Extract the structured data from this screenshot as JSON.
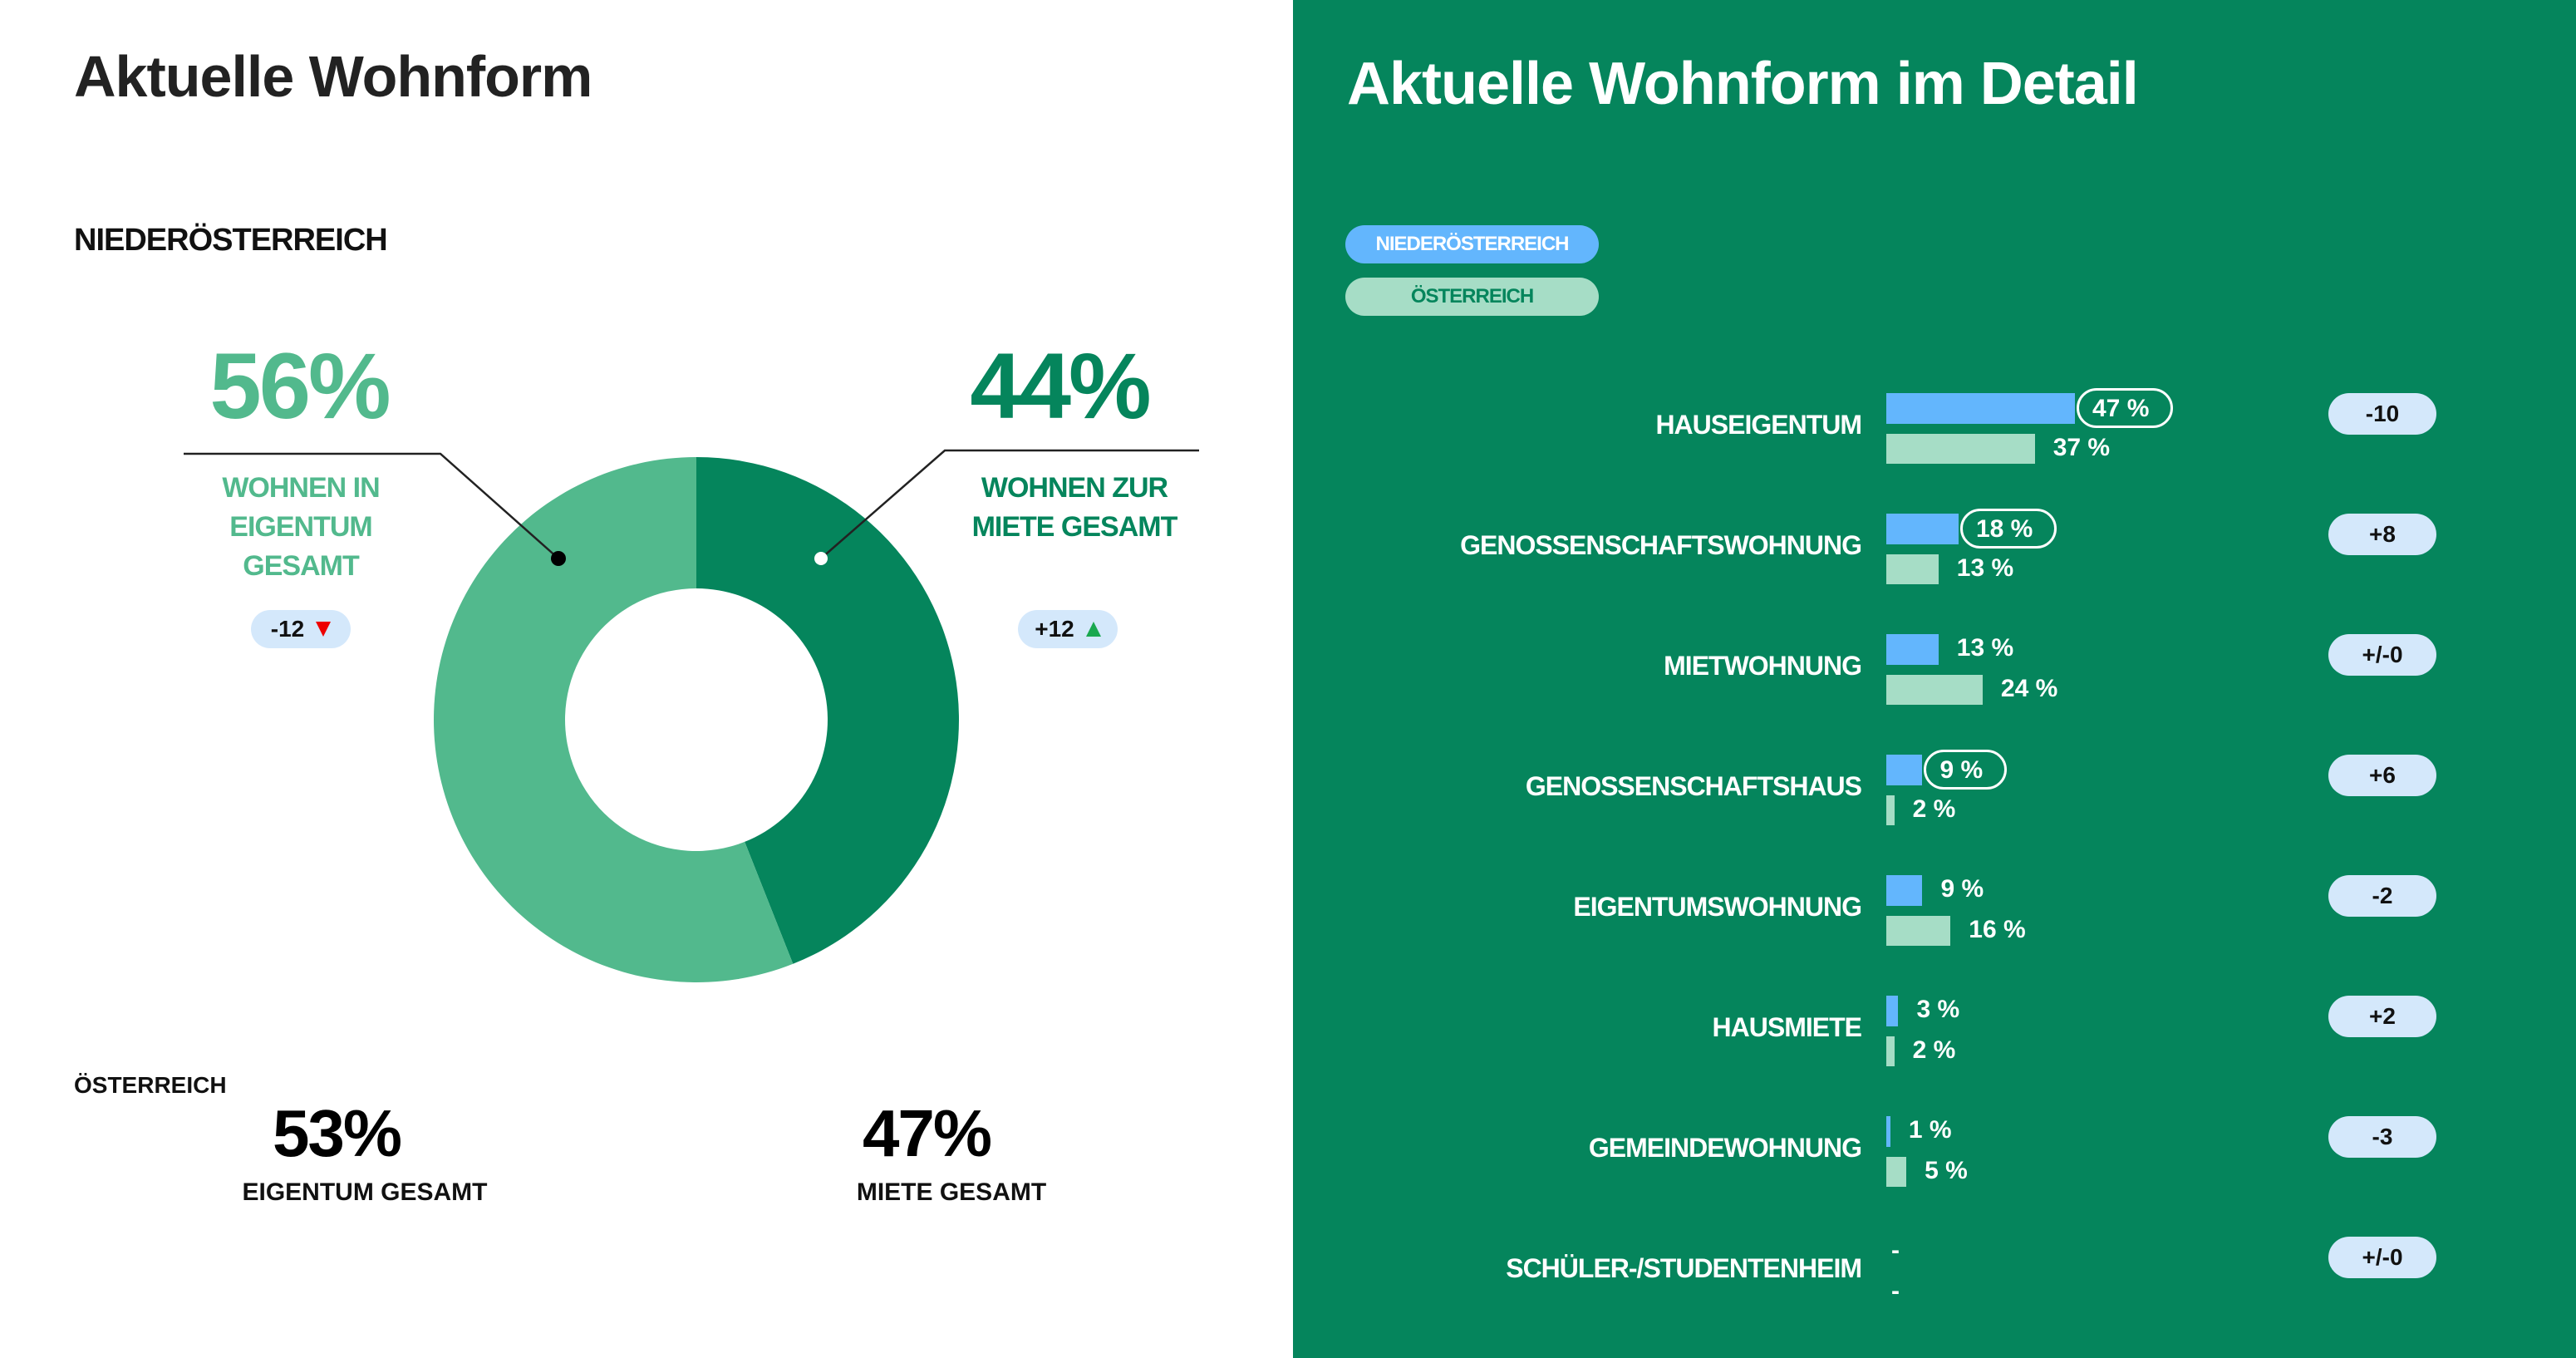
{
  "left": {
    "title": "Aktuelle Wohnform",
    "region": "NIEDERÖSTERREICH",
    "eigentum": {
      "percent": "56%",
      "label_lines": [
        "WOHNEN IN",
        "EIGENTUM",
        "GESAMT"
      ],
      "delta": "-12",
      "trend": "down"
    },
    "miete": {
      "percent": "44%",
      "label_lines": [
        "WOHNEN ZUR",
        "MIETE GESAMT"
      ],
      "delta": "+12",
      "trend": "up"
    },
    "austria": {
      "label": "ÖSTERREICH",
      "eigentum": {
        "percent": "53%",
        "label": "EIGENTUM GESAMT"
      },
      "miete": {
        "percent": "47%",
        "label": "MIETE GESAMT"
      }
    }
  },
  "right": {
    "title": "Aktuelle Wohnform im Detail",
    "legend": [
      {
        "label": "NIEDERÖSTERREICH",
        "color": "#63b6fd"
      },
      {
        "label": "ÖSTERREICH",
        "color": "#a6ddc6"
      }
    ]
  },
  "chart_data": [
    {
      "type": "pie",
      "subtype": "donut",
      "categories": [
        "Wohnen zur Miete gesamt",
        "Wohnen in Eigentum gesamt"
      ],
      "values": [
        44,
        56
      ],
      "colors": [
        "#05855c",
        "#52b98d"
      ]
    },
    {
      "type": "bar",
      "orientation": "horizontal",
      "categories": [
        "HAUSEIGENTUM",
        "GENOSSENSCHAFTSWOHNUNG",
        "MIETWOHNUNG",
        "GENOSSENSCHAFTSHAUS",
        "EIGENTUMSWOHNUNG",
        "HAUSMIETE",
        "GEMEINDEWOHNUNG",
        "SCHÜLER-/STUDENTENHEIM"
      ],
      "series": [
        {
          "name": "NIEDERÖSTERREICH",
          "color": "#63b6fd",
          "values": [
            47,
            18,
            13,
            9,
            9,
            3,
            1,
            null
          ],
          "labels": [
            "47 %",
            "18 %",
            "13 %",
            "9 %",
            "9 %",
            "3 %",
            "1 %",
            "-"
          ],
          "highlighted": [
            true,
            true,
            false,
            true,
            false,
            false,
            false,
            false
          ]
        },
        {
          "name": "ÖSTERREICH",
          "color": "#a6ddc6",
          "values": [
            37,
            13,
            24,
            2,
            16,
            2,
            5,
            null
          ],
          "labels": [
            "37 %",
            "13 %",
            "24 %",
            "2 %",
            "16 %",
            "2 %",
            "5 %",
            "-"
          ]
        }
      ],
      "differences": [
        "-10",
        "+8",
        "+/-0",
        "+6",
        "-2",
        "+2",
        "-3",
        "+/-0"
      ]
    }
  ]
}
